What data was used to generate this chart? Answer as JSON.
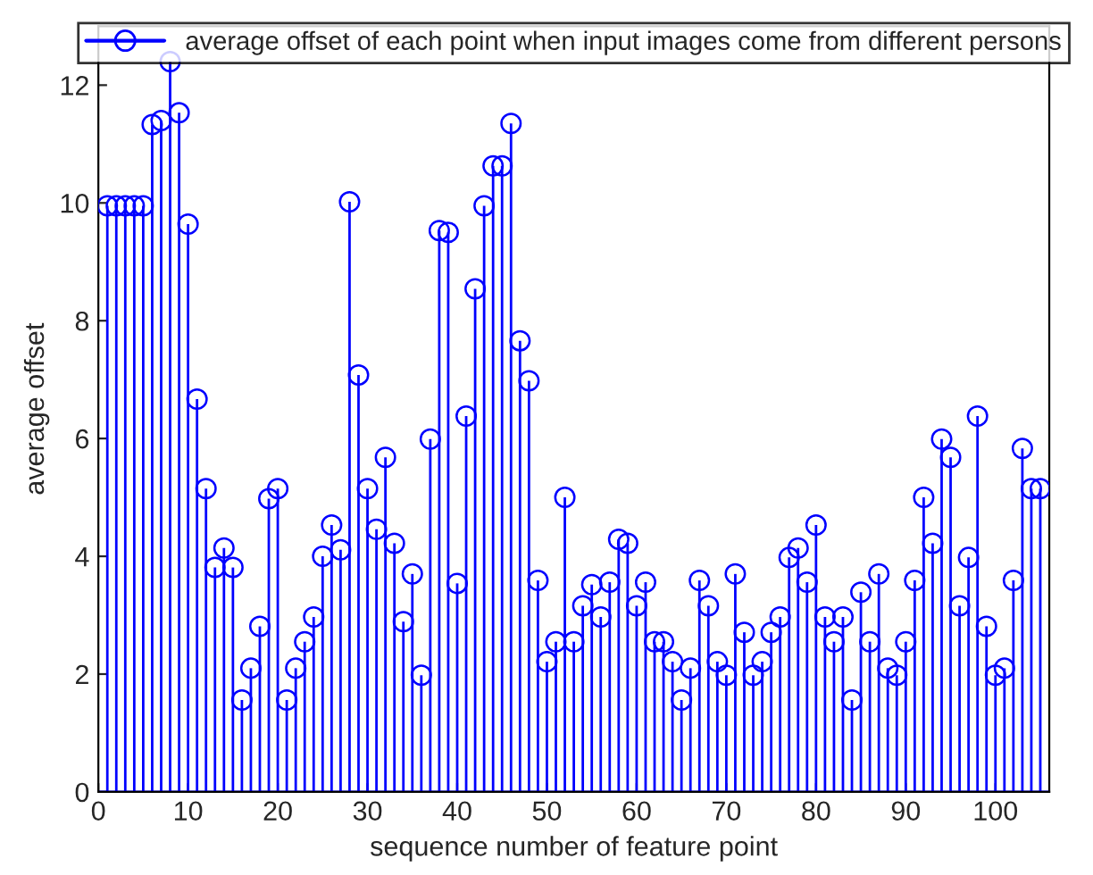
{
  "chart_data": {
    "type": "lollipop",
    "xlabel": "sequence number of feature point",
    "ylabel": "average offset",
    "x": [
      1,
      2,
      3,
      4,
      5,
      6,
      7,
      8,
      9,
      10,
      11,
      12,
      13,
      14,
      15,
      16,
      17,
      18,
      19,
      20,
      21,
      22,
      23,
      24,
      25,
      26,
      27,
      28,
      29,
      30,
      31,
      32,
      33,
      34,
      35,
      36,
      37,
      38,
      39,
      40,
      41,
      42,
      43,
      44,
      45,
      46,
      47,
      48,
      49,
      50,
      51,
      52,
      53,
      54,
      55,
      56,
      57,
      58,
      59,
      60,
      61,
      62,
      63,
      64,
      65,
      66,
      67,
      68,
      69,
      70,
      71,
      72,
      73,
      74,
      75,
      76,
      77,
      78,
      79,
      80,
      81,
      82,
      83,
      84,
      85,
      86,
      87,
      88,
      89,
      90,
      91,
      92,
      93,
      94,
      95,
      96,
      97,
      98,
      99,
      100,
      101,
      102,
      103,
      104,
      105
    ],
    "series": [
      {
        "name": "average offset of each point when input images come from different persons",
        "color": "#0000ff",
        "values": [
          9.95,
          9.95,
          9.95,
          9.95,
          9.95,
          11.33,
          11.4,
          12.4,
          11.53,
          9.64,
          6.67,
          5.15,
          3.81,
          4.14,
          3.81,
          1.56,
          2.1,
          2.81,
          4.98,
          5.15,
          1.56,
          2.1,
          2.55,
          2.97,
          4.0,
          4.53,
          4.11,
          10.02,
          7.08,
          5.15,
          4.46,
          5.68,
          4.22,
          2.89,
          3.7,
          1.98,
          5.99,
          9.53,
          9.5,
          3.54,
          6.38,
          8.54,
          9.95,
          10.63,
          10.63,
          11.35,
          7.66,
          6.98,
          3.59,
          2.21,
          2.55,
          5.0,
          2.55,
          3.16,
          3.52,
          2.97,
          3.56,
          4.29,
          4.22,
          3.16,
          3.56,
          2.55,
          2.55,
          2.21,
          1.56,
          2.1,
          3.59,
          3.16,
          2.21,
          1.98,
          3.7,
          2.71,
          1.98,
          2.21,
          2.71,
          2.97,
          3.98,
          4.14,
          3.56,
          4.53,
          2.97,
          2.55,
          2.97,
          1.56,
          3.39,
          2.55,
          3.7,
          2.1,
          1.98,
          2.55,
          3.59,
          5.0,
          4.22,
          5.99,
          5.68,
          3.16,
          3.98,
          6.38,
          2.81,
          1.98,
          2.1,
          3.59,
          5.83,
          5.15,
          5.15
        ]
      }
    ],
    "xlim": [
      0,
      106
    ],
    "ylim": [
      0,
      13
    ],
    "xticks": [
      0,
      10,
      20,
      30,
      40,
      50,
      60,
      70,
      80,
      90,
      100
    ],
    "yticks": [
      0,
      2,
      4,
      6,
      8,
      10,
      12
    ],
    "marker": "circle",
    "legend": "top",
    "grid": false
  }
}
